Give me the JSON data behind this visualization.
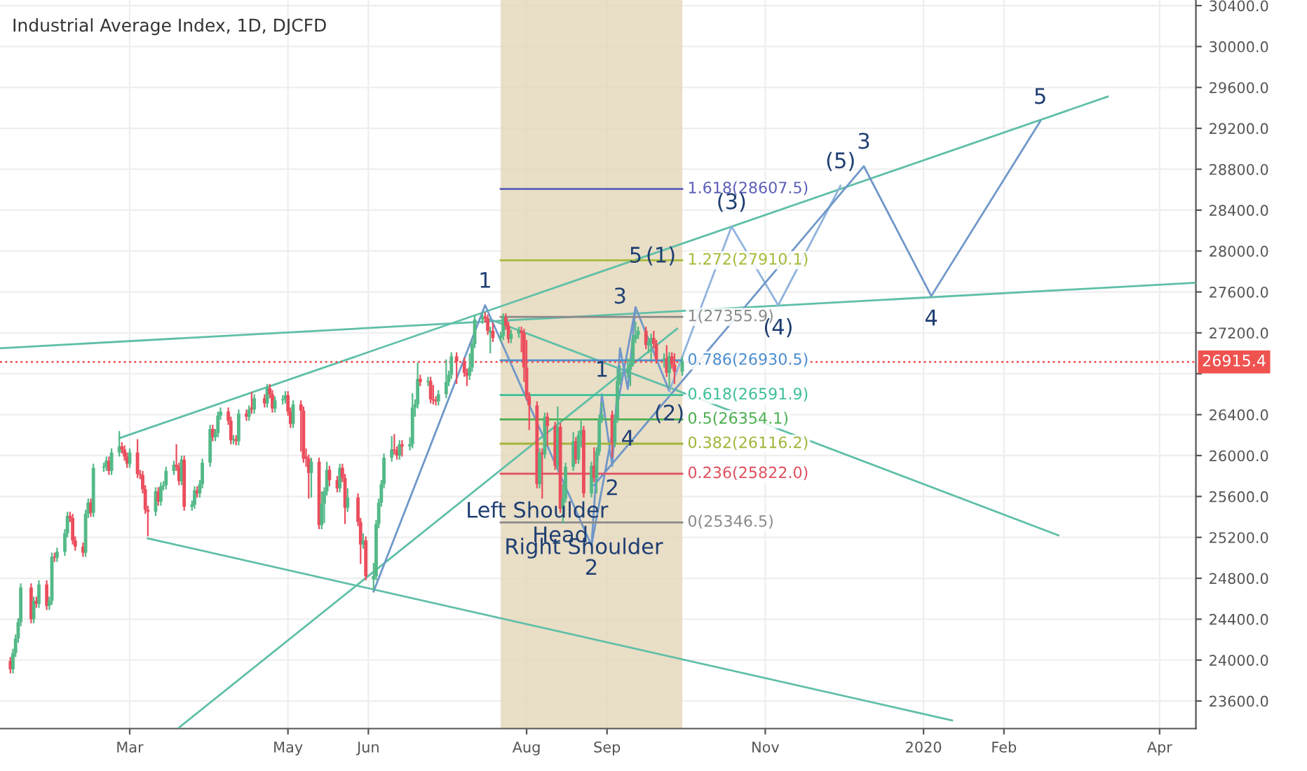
{
  "chart_data": {
    "type": "candlestick",
    "title": "Industrial Average Index, 1D, DJCFD",
    "x": [
      "2019-01-14",
      "2019-01-15",
      "2019-01-16",
      "2019-01-17",
      "2019-01-18",
      "2019-01-22",
      "2019-01-23",
      "2019-01-24",
      "2019-01-25",
      "2019-01-28",
      "2019-01-29",
      "2019-01-30",
      "2019-01-31",
      "2019-02-01",
      "2019-02-04",
      "2019-02-05",
      "2019-02-06",
      "2019-02-07",
      "2019-02-08",
      "2019-02-11",
      "2019-02-12",
      "2019-02-13",
      "2019-02-14",
      "2019-02-15",
      "2019-02-19",
      "2019-02-20",
      "2019-02-21",
      "2019-02-22",
      "2019-02-25",
      "2019-02-26",
      "2019-02-27",
      "2019-02-28",
      "2019-03-01",
      "2019-03-04",
      "2019-03-05",
      "2019-03-06",
      "2019-03-07",
      "2019-03-08",
      "2019-03-11",
      "2019-03-12",
      "2019-03-13",
      "2019-03-14",
      "2019-03-15",
      "2019-03-18",
      "2019-03-19",
      "2019-03-20",
      "2019-03-21",
      "2019-03-22",
      "2019-03-25",
      "2019-03-26",
      "2019-03-27",
      "2019-03-28",
      "2019-03-29",
      "2019-04-01",
      "2019-04-02",
      "2019-04-03",
      "2019-04-04",
      "2019-04-05",
      "2019-04-08",
      "2019-04-09",
      "2019-04-10",
      "2019-04-11",
      "2019-04-12",
      "2019-04-15",
      "2019-04-16",
      "2019-04-17",
      "2019-04-18",
      "2019-04-22",
      "2019-04-23",
      "2019-04-24",
      "2019-04-25",
      "2019-04-26",
      "2019-04-29",
      "2019-04-30",
      "2019-05-01",
      "2019-05-02",
      "2019-05-03",
      "2019-05-06",
      "2019-05-07",
      "2019-05-08",
      "2019-05-09",
      "2019-05-10",
      "2019-05-13",
      "2019-05-14",
      "2019-05-15",
      "2019-05-16",
      "2019-05-17",
      "2019-05-20",
      "2019-05-21",
      "2019-05-22",
      "2019-05-23",
      "2019-05-24",
      "2019-05-28",
      "2019-05-29",
      "2019-05-30",
      "2019-05-31",
      "2019-06-03",
      "2019-06-04",
      "2019-06-05",
      "2019-06-06",
      "2019-06-07",
      "2019-06-10",
      "2019-06-11",
      "2019-06-12",
      "2019-06-13",
      "2019-06-14",
      "2019-06-17",
      "2019-06-18",
      "2019-06-19",
      "2019-06-20",
      "2019-06-21",
      "2019-06-24",
      "2019-06-25",
      "2019-06-26",
      "2019-06-27",
      "2019-06-28",
      "2019-07-01",
      "2019-07-02",
      "2019-07-03",
      "2019-07-05",
      "2019-07-08",
      "2019-07-09",
      "2019-07-10",
      "2019-07-11",
      "2019-07-12",
      "2019-07-15",
      "2019-07-16",
      "2019-07-17",
      "2019-07-18",
      "2019-07-19",
      "2019-07-22",
      "2019-07-23",
      "2019-07-24",
      "2019-07-25",
      "2019-07-26",
      "2019-07-29",
      "2019-07-30",
      "2019-07-31",
      "2019-08-01",
      "2019-08-02",
      "2019-08-05",
      "2019-08-06",
      "2019-08-07",
      "2019-08-08",
      "2019-08-09",
      "2019-08-12",
      "2019-08-13",
      "2019-08-14",
      "2019-08-15",
      "2019-08-16",
      "2019-08-19",
      "2019-08-20",
      "2019-08-21",
      "2019-08-22",
      "2019-08-23",
      "2019-08-26",
      "2019-08-27",
      "2019-08-28",
      "2019-08-29",
      "2019-08-30",
      "2019-09-03",
      "2019-09-04",
      "2019-09-05",
      "2019-09-06",
      "2019-09-09",
      "2019-09-10",
      "2019-09-11",
      "2019-09-12",
      "2019-09-13",
      "2019-09-16",
      "2019-09-17",
      "2019-09-18",
      "2019-09-19",
      "2019-09-20",
      "2019-09-23",
      "2019-09-24",
      "2019-09-25",
      "2019-09-26",
      "2019-09-27",
      "2019-09-30"
    ],
    "ohlc": [
      [
        23990,
        24030,
        23870,
        23910
      ],
      [
        23910,
        24110,
        23870,
        24070
      ],
      [
        24070,
        24250,
        24030,
        24210
      ],
      [
        24210,
        24410,
        24170,
        24370
      ],
      [
        24370,
        24750,
        24330,
        24710
      ],
      [
        24710,
        24750,
        24360,
        24400
      ],
      [
        24400,
        24620,
        24360,
        24580
      ],
      [
        24580,
        24620,
        24510,
        24550
      ],
      [
        24550,
        24780,
        24510,
        24740
      ],
      [
        24740,
        24780,
        24490,
        24530
      ],
      [
        24530,
        24620,
        24490,
        24580
      ],
      [
        24580,
        25050,
        24540,
        25010
      ],
      [
        25010,
        25050,
        24960,
        25000
      ],
      [
        25000,
        25100,
        24960,
        25060
      ],
      [
        25060,
        25280,
        25020,
        25240
      ],
      [
        25240,
        25450,
        25200,
        25410
      ],
      [
        25410,
        25450,
        25350,
        25390
      ],
      [
        25390,
        25430,
        25130,
        25170
      ],
      [
        25170,
        25210,
        25070,
        25110
      ],
      [
        25110,
        25150,
        25010,
        25050
      ],
      [
        25050,
        25470,
        25010,
        25430
      ],
      [
        25430,
        25580,
        25390,
        25540
      ],
      [
        25540,
        25580,
        25400,
        25440
      ],
      [
        25440,
        25920,
        25400,
        25880
      ],
      [
        25880,
        25930,
        25840,
        25890
      ],
      [
        25890,
        25990,
        25850,
        25950
      ],
      [
        25950,
        25990,
        25810,
        25850
      ],
      [
        25850,
        26070,
        25810,
        26030
      ],
      [
        26030,
        26240,
        25990,
        26090
      ],
      [
        26090,
        26130,
        26020,
        26060
      ],
      [
        26060,
        26100,
        25950,
        25990
      ],
      [
        25990,
        26030,
        25880,
        25920
      ],
      [
        25920,
        26070,
        25880,
        26030
      ],
      [
        26030,
        26160,
        25780,
        25820
      ],
      [
        25820,
        25860,
        25770,
        25810
      ],
      [
        25810,
        25850,
        25630,
        25670
      ],
      [
        25670,
        25710,
        25430,
        25470
      ],
      [
        25470,
        25510,
        25210,
        25450
      ],
      [
        25450,
        25690,
        25410,
        25650
      ],
      [
        25650,
        25690,
        25510,
        25550
      ],
      [
        25550,
        25740,
        25510,
        25700
      ],
      [
        25700,
        25750,
        25660,
        25710
      ],
      [
        25710,
        25890,
        25670,
        25850
      ],
      [
        25850,
        25950,
        25810,
        25910
      ],
      [
        25910,
        26110,
        25850,
        25890
      ],
      [
        25890,
        25930,
        25710,
        25750
      ],
      [
        25750,
        26000,
        25710,
        25960
      ],
      [
        25960,
        26000,
        25460,
        25500
      ],
      [
        25500,
        25560,
        25460,
        25520
      ],
      [
        25520,
        25700,
        25480,
        25660
      ],
      [
        25660,
        25700,
        25590,
        25630
      ],
      [
        25630,
        25760,
        25590,
        25720
      ],
      [
        25720,
        25970,
        25680,
        25930
      ],
      [
        25930,
        26300,
        25890,
        26260
      ],
      [
        26260,
        26300,
        26140,
        26180
      ],
      [
        26180,
        26260,
        26140,
        26220
      ],
      [
        26220,
        26430,
        26180,
        26390
      ],
      [
        26390,
        26470,
        26350,
        26430
      ],
      [
        26430,
        26470,
        26300,
        26340
      ],
      [
        26340,
        26380,
        26110,
        26150
      ],
      [
        26150,
        26200,
        26110,
        26160
      ],
      [
        26160,
        26200,
        26100,
        26140
      ],
      [
        26140,
        26450,
        26100,
        26410
      ],
      [
        26410,
        26450,
        26340,
        26380
      ],
      [
        26380,
        26490,
        26340,
        26450
      ],
      [
        26470,
        26620,
        26410,
        26450
      ],
      [
        26450,
        26600,
        26410,
        26560
      ],
      [
        26560,
        26600,
        26470,
        26510
      ],
      [
        26510,
        26700,
        26470,
        26660
      ],
      [
        26660,
        26700,
        26560,
        26600
      ],
      [
        26600,
        26640,
        26420,
        26460
      ],
      [
        26460,
        26580,
        26420,
        26540
      ],
      [
        26540,
        26590,
        26500,
        26550
      ],
      [
        26550,
        26630,
        26510,
        26590
      ],
      [
        26590,
        26630,
        26390,
        26430
      ],
      [
        26430,
        26470,
        26270,
        26310
      ],
      [
        26310,
        26540,
        26270,
        26500
      ],
      [
        26500,
        26540,
        26040,
        26440
      ],
      [
        26440,
        26480,
        25930,
        25970
      ],
      [
        25990,
        26070,
        25890,
        25970
      ],
      [
        25970,
        26010,
        25580,
        25830
      ],
      [
        25830,
        25980,
        25590,
        25940
      ],
      [
        25940,
        25980,
        25280,
        25320
      ],
      [
        25320,
        25650,
        25280,
        25530
      ],
      [
        25530,
        25690,
        25340,
        25650
      ],
      [
        25650,
        25940,
        25610,
        25860
      ],
      [
        25860,
        25900,
        25700,
        25760
      ],
      [
        25760,
        25800,
        25640,
        25680
      ],
      [
        25680,
        25920,
        25640,
        25880
      ],
      [
        25880,
        25920,
        25740,
        25780
      ],
      [
        25780,
        25820,
        25330,
        25490
      ],
      [
        25490,
        25680,
        25450,
        25590
      ],
      [
        25590,
        25630,
        25310,
        25350
      ],
      [
        25350,
        25390,
        24940,
        25130
      ],
      [
        25130,
        25240,
        25090,
        25170
      ],
      [
        25170,
        25210,
        24780,
        24820
      ],
      [
        24790,
        24950,
        24680,
        24820
      ],
      [
        24820,
        25370,
        24780,
        25330
      ],
      [
        25330,
        25580,
        25290,
        25540
      ],
      [
        25540,
        25760,
        25500,
        25720
      ],
      [
        25720,
        26020,
        25680,
        25980
      ],
      [
        25980,
        26190,
        25940,
        26060
      ],
      [
        26060,
        26210,
        26010,
        26050
      ],
      [
        26050,
        26090,
        25960,
        26000
      ],
      [
        26000,
        26150,
        25960,
        26110
      ],
      [
        26110,
        26150,
        25990,
        26090
      ],
      [
        26090,
        26180,
        26050,
        26110
      ],
      [
        26110,
        26610,
        26070,
        26470
      ],
      [
        26470,
        26550,
        26380,
        26500
      ],
      [
        26500,
        26910,
        26460,
        26750
      ],
      [
        26750,
        26790,
        26680,
        26720
      ],
      [
        26720,
        26770,
        26680,
        26730
      ],
      [
        26730,
        26770,
        26510,
        26550
      ],
      [
        26550,
        26690,
        26500,
        26540
      ],
      [
        26540,
        26580,
        26490,
        26530
      ],
      [
        26530,
        26640,
        26490,
        26600
      ],
      [
        26600,
        26940,
        26560,
        26720
      ],
      [
        26720,
        26830,
        26680,
        26790
      ],
      [
        26790,
        27010,
        26750,
        26970
      ],
      [
        26970,
        27010,
        26700,
        26920
      ],
      [
        26920,
        26960,
        26770,
        26810
      ],
      [
        26810,
        26850,
        26680,
        26780
      ],
      [
        26780,
        27000,
        26740,
        26860
      ],
      [
        26860,
        27130,
        26820,
        27090
      ],
      [
        27090,
        27370,
        27050,
        27330
      ],
      [
        27330,
        27400,
        27290,
        27360
      ],
      [
        27360,
        27400,
        27300,
        27340
      ],
      [
        27340,
        27380,
        27180,
        27220
      ],
      [
        27200,
        27260,
        27000,
        27220
      ],
      [
        27220,
        27300,
        27110,
        27150
      ],
      [
        27150,
        27210,
        27110,
        27170
      ],
      [
        27170,
        27390,
        27130,
        27350
      ],
      [
        27350,
        27390,
        27230,
        27270
      ],
      [
        27270,
        27310,
        27100,
        27140
      ],
      [
        27140,
        27230,
        27100,
        27190
      ],
      [
        27190,
        27260,
        27150,
        27220
      ],
      [
        27220,
        27260,
        27010,
        27200
      ],
      [
        27200,
        27240,
        26720,
        26860
      ],
      [
        26860,
        27130,
        26540,
        26580
      ],
      [
        26580,
        26620,
        26250,
        26490
      ],
      [
        26490,
        26530,
        25680,
        25720
      ],
      [
        25720,
        26070,
        25680,
        26030
      ],
      [
        26030,
        26070,
        25580,
        26010
      ],
      [
        26010,
        26420,
        25970,
        26380
      ],
      [
        26380,
        26420,
        26090,
        26290
      ],
      [
        26290,
        26330,
        25860,
        25900
      ],
      [
        25900,
        26480,
        25860,
        26280
      ],
      [
        26280,
        26320,
        25440,
        25480
      ],
      [
        25480,
        25720,
        25340,
        25580
      ],
      [
        25580,
        25930,
        25540,
        25890
      ],
      [
        25890,
        26230,
        25850,
        26140
      ],
      [
        26140,
        26180,
        25920,
        25960
      ],
      [
        25960,
        26240,
        25920,
        26200
      ],
      [
        26200,
        26340,
        26080,
        26250
      ],
      [
        26250,
        26290,
        25590,
        25630
      ],
      [
        25630,
        25940,
        25590,
        25900
      ],
      [
        25900,
        26080,
        25740,
        25780
      ],
      [
        25780,
        26080,
        25630,
        26040
      ],
      [
        26040,
        26400,
        26000,
        26360
      ],
      [
        26360,
        26520,
        26320,
        26400
      ],
      [
        26400,
        26440,
        25980,
        26120
      ],
      [
        26120,
        26400,
        26080,
        26360
      ],
      [
        26360,
        26850,
        26320,
        26730
      ],
      [
        26730,
        26880,
        26690,
        26800
      ],
      [
        26800,
        26950,
        26760,
        26840
      ],
      [
        26840,
        26950,
        26680,
        26910
      ],
      [
        26910,
        27180,
        26870,
        27140
      ],
      [
        27140,
        27310,
        27100,
        27180
      ],
      [
        27180,
        27260,
        27140,
        27220
      ],
      [
        27220,
        27260,
        27040,
        27080
      ],
      [
        27080,
        27150,
        27000,
        27110
      ],
      [
        27110,
        27190,
        26940,
        27150
      ],
      [
        27150,
        27220,
        27050,
        27090
      ],
      [
        27090,
        27130,
        26900,
        26940
      ],
      [
        26940,
        27000,
        26860,
        26950
      ],
      [
        26950,
        27080,
        26770,
        26810
      ],
      [
        26810,
        27010,
        26660,
        26970
      ],
      [
        26970,
        27010,
        26850,
        26890
      ],
      [
        26890,
        27000,
        26700,
        26820
      ],
      [
        26820,
        26970,
        26780,
        26920
      ]
    ],
    "series": [
      {
        "type": "line",
        "color": "#5fbfa8",
        "x": [
          "2019-02-25",
          "2020-03-12"
        ],
        "values": [
          26170,
          29510
        ]
      },
      {
        "type": "line",
        "color": "#5fbfa8",
        "x": [
          "2019-01-10",
          "2020-04-15"
        ],
        "values": [
          27050,
          27690
        ]
      },
      {
        "type": "line",
        "color": "#5fbfa8",
        "x": [
          "2019-03-08",
          "2020-01-12"
        ],
        "values": [
          25190,
          23410
        ]
      },
      {
        "type": "line",
        "color": "#5fbfa8",
        "x": [
          "2019-03-20",
          "2019-09-28"
        ],
        "values": [
          23340,
          27240
        ]
      },
      {
        "type": "line",
        "color": "#5fbfa8",
        "x": [
          "2019-07-17",
          "2020-02-22"
        ],
        "values": [
          27340,
          25220
        ]
      },
      {
        "type": "line",
        "color": "#6f97c9",
        "x": [
          "2019-06-03",
          "2019-07-16",
          "2019-08-26",
          "2019-09-12",
          "2019-09-25"
        ],
        "values": [
          24670,
          27470,
          25120,
          27450,
          26630
        ]
      },
      {
        "type": "line",
        "color": "#8fb3dc",
        "x": [
          "2019-09-25",
          "2019-10-19",
          "2019-11-06",
          "2019-11-30"
        ],
        "values": [
          26630,
          28240,
          27470,
          28640
        ]
      },
      {
        "type": "line",
        "color": "#6f97c9",
        "x": [
          "2019-08-27",
          "2019-12-09",
          "2020-01-04",
          "2020-02-15"
        ],
        "values": [
          25710,
          28830,
          27560,
          29270
        ]
      },
      {
        "type": "line",
        "color": "#6f97c9",
        "x": [
          "2019-08-26",
          "2019-08-30",
          "2019-09-03",
          "2019-09-06",
          "2019-09-09",
          "2019-09-12"
        ],
        "values": [
          25120,
          26600,
          25900,
          27050,
          26650,
          27450
        ]
      },
      {
        "type": "line",
        "name": "1.618(28607.5)",
        "color": "#5c5fb8",
        "x": [
          "2019-07-22",
          "2019-09-30"
        ],
        "values": [
          28607.5,
          28607.5
        ]
      },
      {
        "type": "line",
        "name": "1.272(27910.1)",
        "color": "#a5bb3a",
        "x": [
          "2019-07-22",
          "2019-09-30"
        ],
        "values": [
          27910.1,
          27910.1
        ]
      },
      {
        "type": "line",
        "name": "1(27355.9)",
        "color": "#8a8a8a",
        "x": [
          "2019-07-22",
          "2019-09-30"
        ],
        "values": [
          27355.9,
          27355.9
        ]
      },
      {
        "type": "line",
        "name": "0.786(26930.5)",
        "color": "#4a8fd0",
        "x": [
          "2019-07-22",
          "2019-09-30"
        ],
        "values": [
          26930.5,
          26930.5
        ]
      },
      {
        "type": "line",
        "name": "0.618(26591.9)",
        "color": "#3bbf9a",
        "x": [
          "2019-07-22",
          "2019-09-30"
        ],
        "values": [
          26591.9,
          26591.9
        ]
      },
      {
        "type": "line",
        "name": "0.5(26354.1)",
        "color": "#4caf50",
        "x": [
          "2019-07-22",
          "2019-09-30"
        ],
        "values": [
          26354.1,
          26354.1
        ]
      },
      {
        "type": "line",
        "name": "0.382(26116.2)",
        "color": "#a2b53a",
        "x": [
          "2019-07-22",
          "2019-09-30"
        ],
        "values": [
          26116.2,
          26116.2
        ]
      },
      {
        "type": "line",
        "name": "0.236(25822.0)",
        "color": "#e04f5f",
        "x": [
          "2019-07-22",
          "2019-09-30"
        ],
        "values": [
          25822.0,
          25822.0
        ]
      },
      {
        "type": "line",
        "name": "0(25346.5)",
        "color": "#8a8a8a",
        "x": [
          "2019-07-22",
          "2019-09-30"
        ],
        "values": [
          25346.5,
          25346.5
        ]
      }
    ],
    "annotations": [
      {
        "text": "1",
        "x": "2019-07-16",
        "y": 27470
      },
      {
        "text": "2",
        "x": "2019-08-26",
        "y": 25120
      },
      {
        "text": "1",
        "x": "2019-08-30",
        "y": 26600
      },
      {
        "text": "2",
        "x": "2019-09-03",
        "y": 25900
      },
      {
        "text": "3",
        "x": "2019-09-06",
        "y": 27050
      },
      {
        "text": "4",
        "x": "2019-09-09",
        "y": 26650
      },
      {
        "text": "5",
        "x": "2019-09-12",
        "y": 27450
      },
      {
        "text": "(1)",
        "x": "2019-09-12",
        "y": 27450
      },
      {
        "text": "(2)",
        "x": "2019-09-25",
        "y": 26630
      },
      {
        "text": "(3)",
        "x": "2019-10-19",
        "y": 28240
      },
      {
        "text": "(4)",
        "x": "2019-11-06",
        "y": 27470
      },
      {
        "text": "(5)",
        "x": "2019-11-30",
        "y": 28640
      },
      {
        "text": "3",
        "x": "2019-12-09",
        "y": 28830
      },
      {
        "text": "4",
        "x": "2020-01-04",
        "y": 27560
      },
      {
        "text": "5",
        "x": "2020-02-15",
        "y": 29270
      },
      {
        "text": "Left Shoulder",
        "x": "2019-08-05",
        "y": 25680
      },
      {
        "text": "Head",
        "x": "2019-08-14",
        "y": 25440
      },
      {
        "text": "Right Shoulder",
        "x": "2019-08-23",
        "y": 25590
      }
    ],
    "ref_lines": [
      {
        "axis": "y",
        "value": 26915.4,
        "label": "26915.4",
        "color": "#ef5350",
        "line_style": "dotted"
      }
    ],
    "bands": [
      {
        "axis": "x",
        "from": "2019-07-22",
        "to": "2019-09-30",
        "color": "#e3d6b8"
      }
    ],
    "xlim": [
      "2019-01-10",
      "2020-04-15"
    ],
    "xticks": [
      {
        "value": "2019-03-01",
        "label": "Mar"
      },
      {
        "value": "2019-05-01",
        "label": "May"
      },
      {
        "value": "2019-06-01",
        "label": "Jun"
      },
      {
        "value": "2019-08-01",
        "label": "Aug"
      },
      {
        "value": "2019-09-01",
        "label": "Sep"
      },
      {
        "value": "2019-11-01",
        "label": "Nov"
      },
      {
        "value": "2020-01-01",
        "label": "2020"
      },
      {
        "value": "2020-02-01",
        "label": "Feb"
      },
      {
        "value": "2020-04-01",
        "label": "Apr"
      }
    ],
    "ylim": [
      23330,
      30455
    ],
    "yticks": [
      {
        "value": 23600,
        "label": "23600.0"
      },
      {
        "value": 24000,
        "label": "24000.0"
      },
      {
        "value": 24400,
        "label": "24400.0"
      },
      {
        "value": 24800,
        "label": "24800.0"
      },
      {
        "value": 25200,
        "label": "25200.0"
      },
      {
        "value": 25600,
        "label": "25600.0"
      },
      {
        "value": 26000,
        "label": "26000.0"
      },
      {
        "value": 26400,
        "label": "26400.0"
      },
      {
        "value": 26800,
        "label": null
      },
      {
        "value": 27200,
        "label": "27200.0"
      },
      {
        "value": 27600,
        "label": "27600.0"
      },
      {
        "value": 28000,
        "label": "28000.0"
      },
      {
        "value": 28400,
        "label": "28400.0"
      },
      {
        "value": 28800,
        "label": "28800.0"
      },
      {
        "value": 29200,
        "label": "29200.0"
      },
      {
        "value": 29600,
        "label": "29600.0"
      },
      {
        "value": 30000,
        "label": "30000.0"
      },
      {
        "value": 30400,
        "label": "30400.0"
      }
    ],
    "grid": true
  }
}
